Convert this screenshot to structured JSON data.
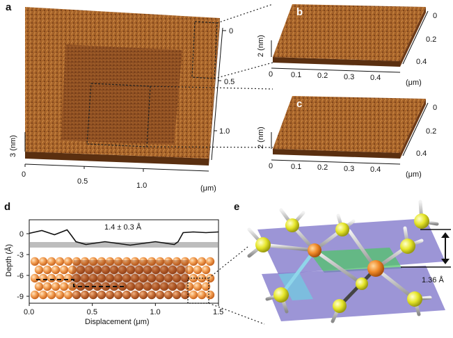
{
  "panel_labels": {
    "a": "a",
    "b": "b",
    "c": "c",
    "d": "d",
    "e": "e"
  },
  "panel_a": {
    "z_label": "3 (nm)",
    "x_ticks": [
      "0",
      "0.5",
      "1.0"
    ],
    "x_unit": "(μm)",
    "y_ticks": [
      "0",
      "0.5",
      "1.0"
    ]
  },
  "panel_b": {
    "z_label": "2 (nm)",
    "x_ticks": [
      "0",
      "0.1",
      "0.2",
      "0.3",
      "0.4"
    ],
    "x_unit": "(μm)",
    "y_ticks": [
      "0",
      "0.2",
      "0.4"
    ]
  },
  "panel_c": {
    "z_label": "2 (nm)",
    "x_ticks": [
      "0",
      "0.1",
      "0.2",
      "0.3",
      "0.4"
    ],
    "x_unit": "(μm)",
    "y_ticks": [
      "0",
      "0.2",
      "0.4"
    ]
  },
  "panel_d": {
    "annotation": "1.4 ± 0.3 Å",
    "xlabel": "Displacement (μm)",
    "ylabel": "Depth (Å)",
    "x_ticks": [
      "0.0",
      "0.5",
      "1.0",
      "1.5"
    ],
    "y_ticks": [
      "0",
      "-3",
      "-6",
      "-9"
    ]
  },
  "panel_e": {
    "annotation": "1.36 Å"
  },
  "chart_data": {
    "type": "line",
    "xlabel": "Displacement (μm)",
    "ylabel": "Depth (Å)",
    "xlim": [
      0,
      1.5
    ],
    "ylim": [
      -10,
      2
    ],
    "x": [
      0.0,
      0.1,
      0.2,
      0.3,
      0.33,
      0.37,
      0.45,
      0.6,
      0.8,
      1.0,
      1.15,
      1.18,
      1.22,
      1.3,
      1.4,
      1.5
    ],
    "series": [
      {
        "values": [
          0.2,
          0.3,
          0.0,
          0.4,
          0.0,
          -1.3,
          -1.4,
          -1.3,
          -1.5,
          -1.3,
          -1.4,
          -1.3,
          0.3,
          0.1,
          0.3,
          0.1
        ]
      }
    ]
  }
}
